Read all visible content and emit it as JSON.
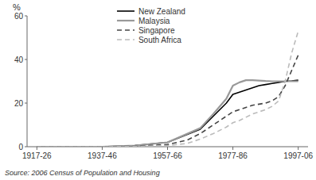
{
  "chart_data": {
    "type": "line",
    "y_label": "%",
    "source": "Source: 2006 Census of Population and Housing",
    "xlim": [
      -0.15,
      4.15
    ],
    "xticks": [
      {
        "value": 0,
        "label": "1917-26"
      },
      {
        "value": 1,
        "label": "1937-46"
      },
      {
        "value": 2,
        "label": "1957-66"
      },
      {
        "value": 3,
        "label": "1977-86"
      },
      {
        "value": 4,
        "label": "1997-06"
      }
    ],
    "ylim": [
      0,
      60
    ],
    "yticks": [
      0,
      20,
      40,
      60
    ],
    "grid": false,
    "legend": "top",
    "series": [
      {
        "name": "New Zealand",
        "color": "#000000",
        "line_style": "solid",
        "x": [
          0,
          1,
          1.5,
          2.0,
          2.5,
          2.7,
          2.9,
          3.0,
          3.1,
          3.2,
          3.3,
          3.4,
          3.5,
          3.6,
          3.7,
          3.8,
          3.9,
          4.0
        ],
        "values": [
          0.0,
          0.0,
          0.5,
          2.0,
          8.0,
          14.0,
          20.0,
          24.0,
          25.0,
          26.0,
          27.0,
          28.0,
          28.5,
          29.0,
          29.5,
          30.0,
          30.2,
          30.5
        ]
      },
      {
        "name": "Malaysia",
        "color": "#999999",
        "line_style": "solid",
        "x": [
          0,
          1,
          1.5,
          2.0,
          2.5,
          2.7,
          2.9,
          3.0,
          3.1,
          3.2,
          3.3,
          3.4,
          3.5,
          3.6,
          3.7,
          3.8,
          3.9,
          4.0
        ],
        "values": [
          0.0,
          0.0,
          0.5,
          2.0,
          8.5,
          15.0,
          22.0,
          28.0,
          29.5,
          30.5,
          30.5,
          30.3,
          30.1,
          30.0,
          30.0,
          30.0,
          30.0,
          30.0
        ]
      },
      {
        "name": "Singapore",
        "color": "#444444",
        "line_style": "dashed",
        "x": [
          0,
          1,
          1.5,
          2.0,
          2.3,
          2.5,
          2.7,
          2.9,
          3.0,
          3.1,
          3.2,
          3.3,
          3.4,
          3.5,
          3.6,
          3.7,
          3.8,
          3.9,
          4.0
        ],
        "values": [
          0.0,
          0.0,
          0.2,
          1.0,
          3.0,
          6.0,
          10.0,
          14.0,
          16.0,
          17.0,
          18.0,
          19.0,
          19.5,
          20.0,
          21.0,
          23.0,
          28.0,
          35.0,
          42.0
        ]
      },
      {
        "name": "South Africa",
        "color": "#bbbbbb",
        "line_style": "dashed",
        "x": [
          0,
          1,
          1.5,
          2.0,
          2.3,
          2.5,
          2.7,
          2.9,
          3.0,
          3.1,
          3.2,
          3.3,
          3.4,
          3.5,
          3.6,
          3.7,
          3.8,
          3.9,
          4.0
        ],
        "values": [
          0.0,
          0.0,
          0.1,
          0.5,
          1.5,
          3.5,
          6.0,
          9.0,
          11.0,
          12.0,
          13.5,
          15.0,
          16.0,
          17.0,
          18.5,
          21.0,
          30.0,
          43.0,
          53.0
        ]
      }
    ]
  }
}
